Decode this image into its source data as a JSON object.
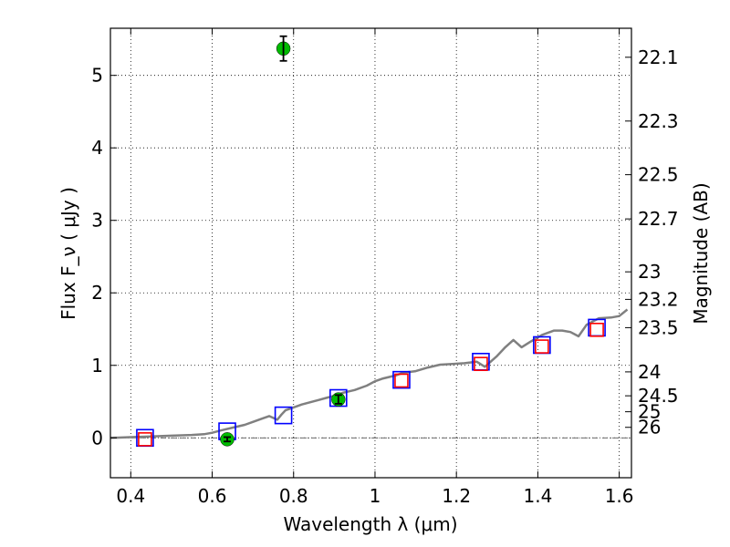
{
  "chart_data": {
    "type": "scatter",
    "title": "",
    "xlabel": "Wavelength  λ (μm)",
    "ylabel": "Flux  F_ν  ( μJy )",
    "y2label": "Magnitude (AB)",
    "xlim": [
      0.35,
      1.63
    ],
    "ylim": [
      -0.55,
      5.65
    ],
    "grid": true,
    "x_ticks": [
      {
        "value": 0.4,
        "label": "0.4"
      },
      {
        "value": 0.6,
        "label": "0.6"
      },
      {
        "value": 0.8,
        "label": "0.8"
      },
      {
        "value": 1.0,
        "label": "1"
      },
      {
        "value": 1.2,
        "label": "1.2"
      },
      {
        "value": 1.4,
        "label": "1.4"
      },
      {
        "value": 1.6,
        "label": "1.6"
      }
    ],
    "y_ticks": [
      {
        "value": 0,
        "label": "0"
      },
      {
        "value": 1,
        "label": "1"
      },
      {
        "value": 2,
        "label": "2"
      },
      {
        "value": 3,
        "label": "3"
      },
      {
        "value": 4,
        "label": "4"
      },
      {
        "value": 5,
        "label": "5"
      }
    ],
    "y2_ticks": [
      {
        "flux": 5.25,
        "label": "22.1"
      },
      {
        "flux": 4.37,
        "label": "22.3"
      },
      {
        "flux": 3.63,
        "label": "22.5"
      },
      {
        "flux": 3.02,
        "label": "22.7"
      },
      {
        "flux": 2.29,
        "label": "23"
      },
      {
        "flux": 1.91,
        "label": "23.2"
      },
      {
        "flux": 1.52,
        "label": "23.5"
      },
      {
        "flux": 0.91,
        "label": "24"
      },
      {
        "flux": 0.58,
        "label": "24.5"
      },
      {
        "flux": 0.36,
        "label": "25"
      },
      {
        "flux": 0.145,
        "label": "26"
      }
    ],
    "series": [
      {
        "type": "line",
        "color": "#808080",
        "x": [
          0.35,
          0.4,
          0.45,
          0.5,
          0.55,
          0.58,
          0.6,
          0.62,
          0.65,
          0.68,
          0.7,
          0.72,
          0.74,
          0.76,
          0.77,
          0.78,
          0.8,
          0.82,
          0.84,
          0.86,
          0.88,
          0.9,
          0.92,
          0.95,
          0.98,
          1.0,
          1.02,
          1.05,
          1.07,
          1.1,
          1.13,
          1.16,
          1.19,
          1.22,
          1.25,
          1.27,
          1.3,
          1.32,
          1.34,
          1.36,
          1.38,
          1.41,
          1.44,
          1.46,
          1.48,
          1.5,
          1.52,
          1.55,
          1.58,
          1.6,
          1.62
        ],
        "y": [
          0.0,
          0.01,
          0.02,
          0.03,
          0.04,
          0.05,
          0.07,
          0.1,
          0.14,
          0.18,
          0.22,
          0.26,
          0.3,
          0.25,
          0.32,
          0.38,
          0.42,
          0.46,
          0.49,
          0.52,
          0.55,
          0.58,
          0.62,
          0.66,
          0.72,
          0.78,
          0.82,
          0.86,
          0.9,
          0.92,
          0.97,
          1.01,
          1.02,
          1.03,
          1.05,
          0.98,
          1.13,
          1.25,
          1.35,
          1.25,
          1.32,
          1.42,
          1.48,
          1.48,
          1.46,
          1.4,
          1.56,
          1.65,
          1.66,
          1.68,
          1.77
        ]
      },
      {
        "type": "scatter",
        "marker": "square-open",
        "color": "#0000ff",
        "x": [
          0.435,
          0.637,
          0.775,
          0.91,
          1.065,
          1.26,
          1.41,
          1.545
        ],
        "y": [
          0.0,
          0.09,
          0.31,
          0.55,
          0.8,
          1.05,
          1.28,
          1.52
        ]
      },
      {
        "type": "scatter",
        "marker": "square-open",
        "color": "#ff0000",
        "x": [
          0.435,
          1.065,
          1.26,
          1.41,
          1.545
        ],
        "y": [
          -0.02,
          0.79,
          1.02,
          1.26,
          1.49
        ]
      },
      {
        "type": "scatter",
        "marker": "circle",
        "color": "#00bb00",
        "x": [
          0.637,
          0.775,
          0.91
        ],
        "y": [
          -0.02,
          5.37,
          0.53
        ],
        "yerr": [
          0.03,
          0.17,
          0.06
        ]
      }
    ]
  }
}
